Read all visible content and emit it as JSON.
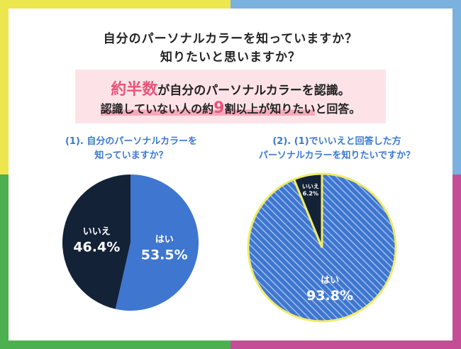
{
  "colors": {
    "frame_yellow": "#ece64f",
    "frame_blue": "#7ab1de",
    "frame_green": "#4caf50",
    "frame_magenta": "#c44d95",
    "navy": "#142237",
    "blue": "#3e76d0",
    "pink": "#e8537a",
    "pink_bg": "#fde3e8"
  },
  "header": {
    "title_line1": "自分のパーソナルカラーを知っていますか？",
    "title_line2": "知りたいと思いますか？"
  },
  "summary": {
    "line1_highlight": "約半数",
    "line1_rest": "が自分のパーソナルカラーを認識。",
    "line2_a": "認識していない人の約",
    "line2_num": "9",
    "line2_b": "割以上が知りたい",
    "line2_end": "と回答。"
  },
  "q1": {
    "line1": "(1). 自分のパーソナルカラーを",
    "line2": "知っていますか？"
  },
  "q2": {
    "line1": "(2). (1)でいいえと回答した方",
    "line2": "パーソナルカラーを知りたいですか？"
  },
  "chart_data": [
    {
      "type": "pie",
      "slices": [
        {
          "label": "はい",
          "value": 53.5,
          "display": "53.5%",
          "color": "#3e76d0"
        },
        {
          "label": "いいえ",
          "value": 46.4,
          "display": "46.4%",
          "color": "#142237"
        }
      ]
    },
    {
      "type": "pie",
      "slices": [
        {
          "label": "はい",
          "value": 93.8,
          "display": "93.8%",
          "color": "#3e76d0",
          "pattern": "diagonal-hatch"
        },
        {
          "label": "いいえ",
          "value": 6.2,
          "display": "6.2%",
          "color": "#142237"
        }
      ]
    }
  ]
}
